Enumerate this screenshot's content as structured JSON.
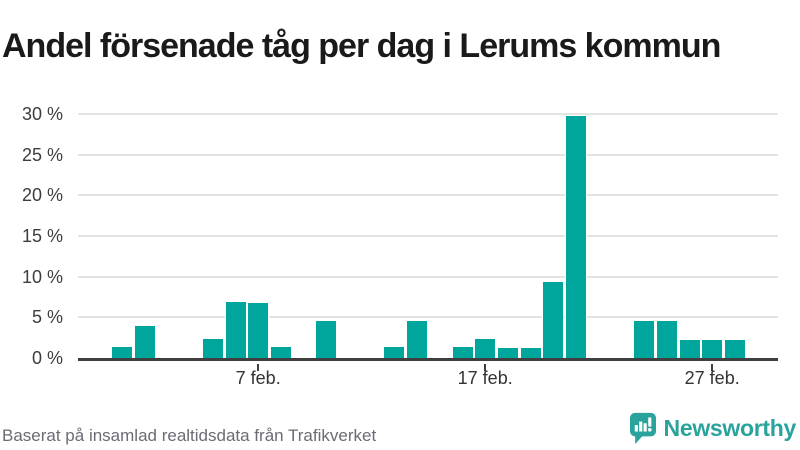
{
  "title": "Andel försenade tåg per dag i Lerums kommun",
  "footer": {
    "source_text": "Baserat på insamlad realtidsdata från Trafikverket"
  },
  "logo": {
    "name": "Newsworthy",
    "icon": "chart-speech-bubble-icon",
    "color": "#2aa39c"
  },
  "colors": {
    "bar": "#00a69c",
    "grid": "#e4e4e4",
    "axis": "#3f3f3f",
    "title_text": "#1a1a1a",
    "axis_label_text": "#3d3d3d",
    "footer_text": "#6b6b76",
    "background": "#ffffff"
  },
  "chart_data": {
    "type": "bar",
    "title": "Andel försenade tåg per dag i Lerums kommun",
    "xlabel": "",
    "ylabel": "",
    "unit": "%",
    "ylim": [
      0,
      30
    ],
    "ytick_step": 5,
    "ytick_labels": [
      "0 %",
      "5 %",
      "10 %",
      "15 %",
      "20 %",
      "25 %",
      "30 %"
    ],
    "grid": "horizontal",
    "legend": "none",
    "categories": [
      "1 feb",
      "2 feb",
      "3 feb",
      "4 feb",
      "5 feb",
      "6 feb",
      "7 feb",
      "8 feb",
      "9 feb",
      "10 feb",
      "11 feb",
      "12 feb",
      "13 feb",
      "14 feb",
      "15 feb",
      "16 feb",
      "17 feb",
      "18 feb",
      "19 feb",
      "20 feb",
      "21 feb",
      "22 feb",
      "23 feb",
      "24 feb",
      "25 feb",
      "26 feb",
      "27 feb",
      "28 feb"
    ],
    "values": [
      1.3,
      3.9,
      0,
      0,
      2.3,
      6.9,
      6.8,
      1.4,
      0,
      4.5,
      0,
      0,
      1.3,
      4.5,
      0,
      1.4,
      2.3,
      1.2,
      1.2,
      9.4,
      29.8,
      0,
      0,
      4.5,
      4.5,
      2.2,
      2.2,
      2.2
    ],
    "xticks": [
      {
        "day": 7,
        "label": "7 feb."
      },
      {
        "day": 17,
        "label": "17 feb."
      },
      {
        "day": 27,
        "label": "27 feb."
      }
    ],
    "bar_color": "#00a69c"
  }
}
